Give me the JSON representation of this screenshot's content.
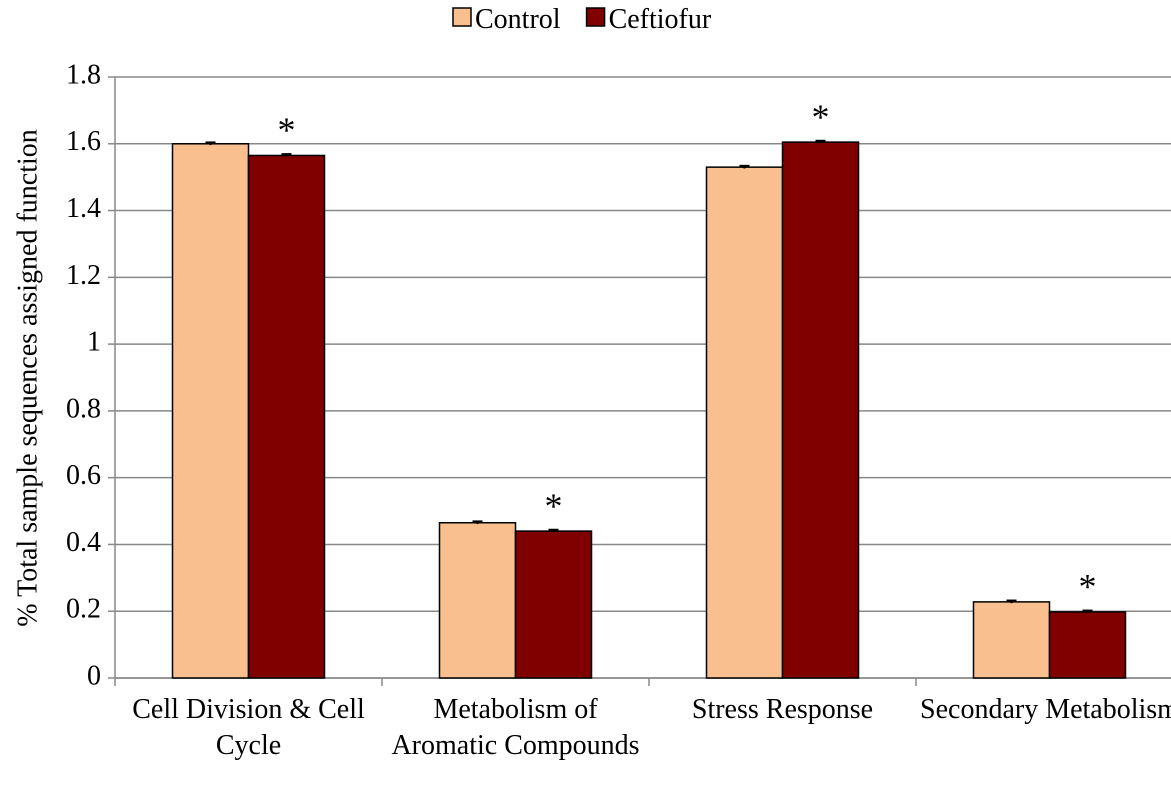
{
  "chart_data": {
    "type": "bar",
    "y_label": "% Total sample sequences assigned function",
    "categories": [
      "Cell Division & Cell Cycle",
      "Metabolism of Aromatic Compounds",
      "Stress Response",
      "Secondary Metabolism"
    ],
    "series": [
      {
        "name": "Control",
        "color": "#f9bf8f",
        "values": [
          1.6,
          0.465,
          1.53,
          0.228
        ],
        "errors": [
          0.004,
          0.004,
          0.004,
          0.004
        ]
      },
      {
        "name": "Ceftiofur",
        "color": "#800000",
        "values": [
          1.565,
          0.44,
          1.605,
          0.198
        ],
        "errors": [
          0.004,
          0.004,
          0.004,
          0.004
        ]
      }
    ],
    "significance": [
      "*",
      "*",
      "*",
      "*"
    ],
    "ylim": [
      0,
      1.8
    ],
    "yticks": [
      0,
      0.2,
      0.4,
      0.6,
      0.8,
      1,
      1.2,
      1.4,
      1.6,
      1.8
    ],
    "grid": true,
    "legend": "top"
  }
}
